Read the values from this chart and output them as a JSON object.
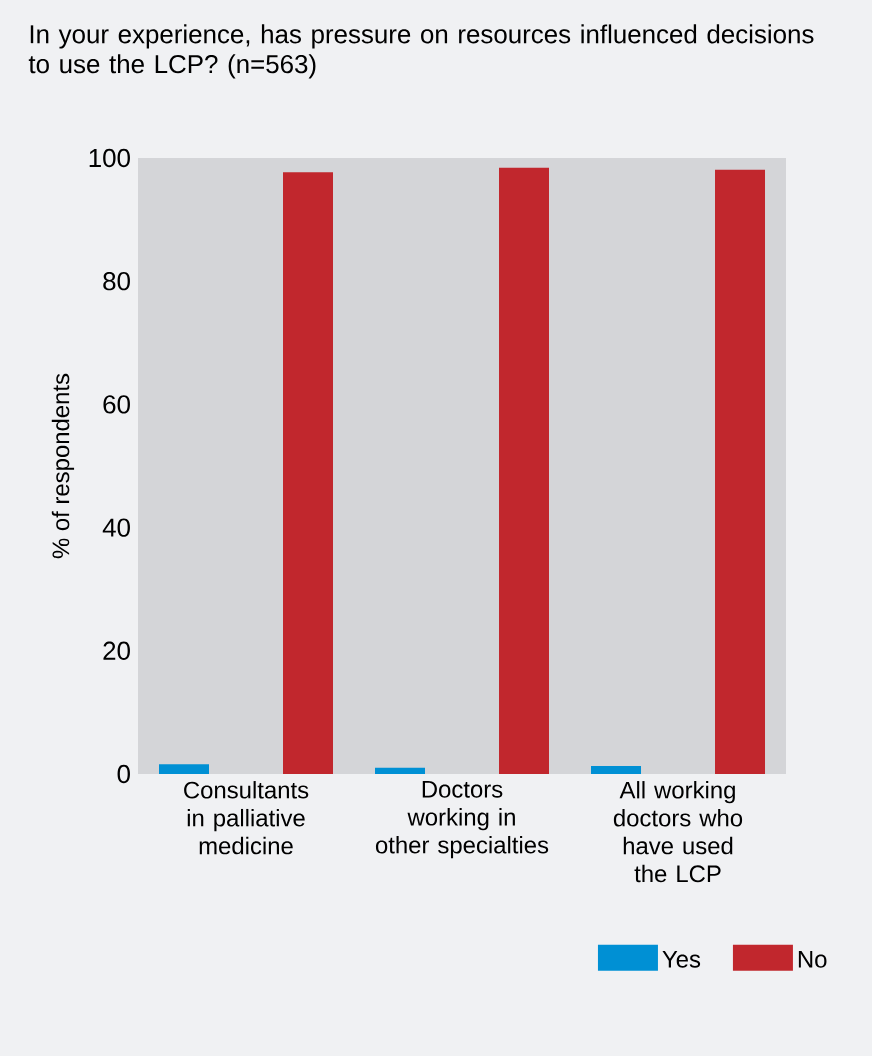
{
  "chart_data": {
    "type": "bar",
    "title": "In your experience, has pressure on resources influenced decisions to use the LCP? (n=563)",
    "ylabel": "% of respondents",
    "categories": [
      "Consultants in palliative medicine",
      "Doctors working in other specialties",
      "All working doctors who have used the LCP"
    ],
    "series": [
      {
        "name": "Yes",
        "color": "#0090d4",
        "values": [
          1.6,
          1.0,
          1.3
        ]
      },
      {
        "name": "No",
        "color": "#c1272d",
        "values": [
          97.7,
          98.4,
          98.1
        ]
      }
    ],
    "ylim": [
      0,
      100
    ],
    "yticks": [
      0,
      20,
      40,
      60,
      80,
      100
    ],
    "legend": "bottom right"
  }
}
